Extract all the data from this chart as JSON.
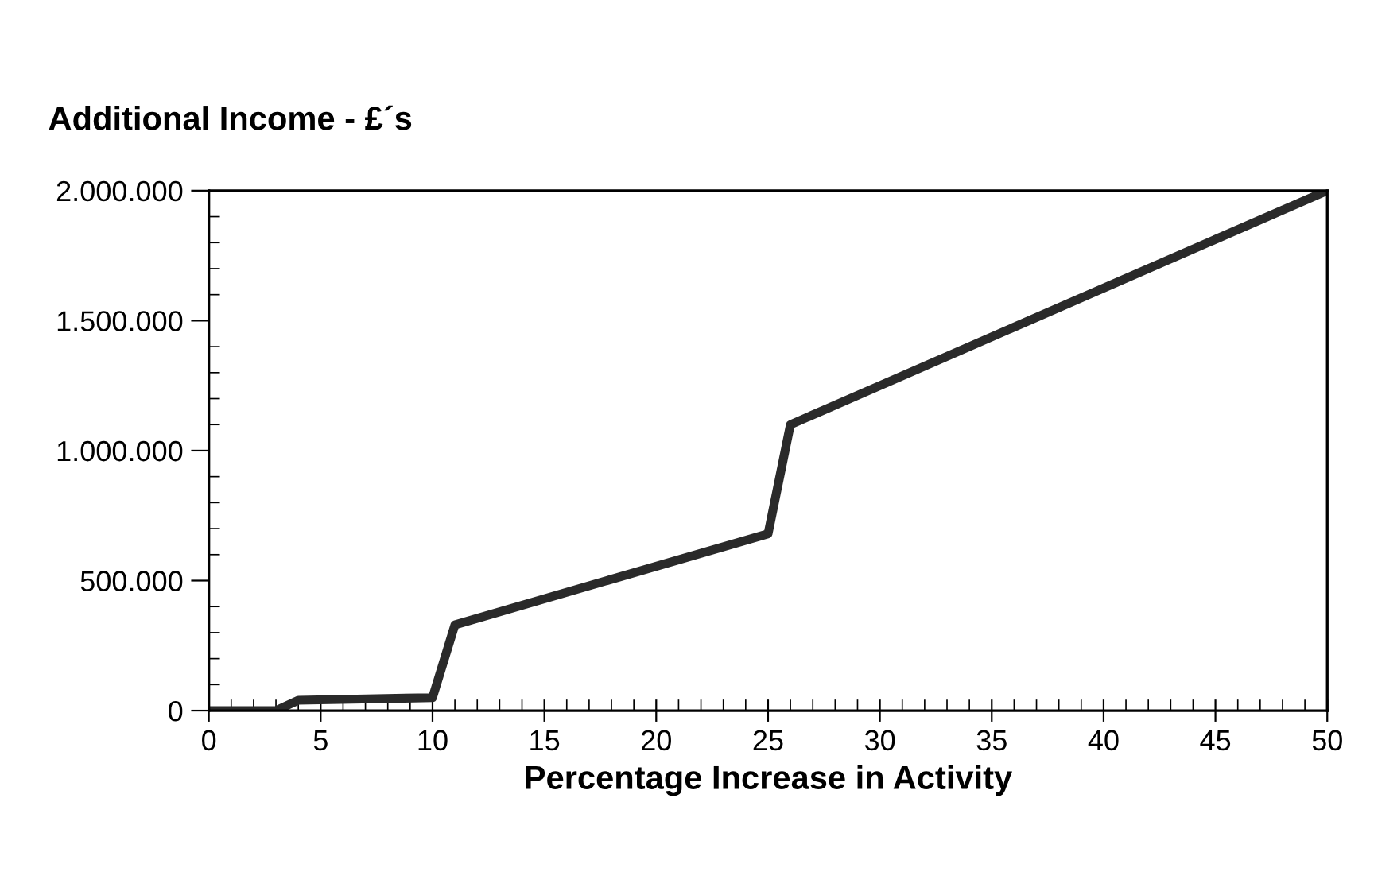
{
  "chart_data": {
    "type": "line",
    "title": "Additional Income - £´s",
    "xlabel": "Percentage Increase in Activity",
    "x": [
      0,
      3,
      4,
      10,
      11,
      25,
      26,
      50
    ],
    "series": [
      {
        "color": "#2a2a2a",
        "values": [
          0,
          0,
          40000,
          50000,
          330000,
          680000,
          1100000,
          2000000
        ]
      }
    ],
    "xlim": [
      0,
      50
    ],
    "xticks": [
      0,
      5,
      10,
      15,
      20,
      25,
      30,
      35,
      40,
      45,
      50
    ],
    "ylim": [
      0,
      2000000
    ],
    "yticks": [
      {
        "value": 0,
        "label": "0"
      },
      {
        "value": 500000,
        "label": "500.000"
      },
      {
        "value": 1000000,
        "label": "1.000.000"
      },
      {
        "value": 1500000,
        "label": "1.500.000"
      },
      {
        "value": 2000000,
        "label": "2.000.000"
      }
    ],
    "grid": false,
    "legend": false,
    "marker": "none",
    "line_style": "solid"
  }
}
